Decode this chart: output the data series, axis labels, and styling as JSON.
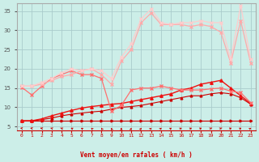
{
  "xlabel": "Vent moyen/en rafales ( km/h )",
  "bg_color": "#cceee8",
  "grid_color": "#aacccc",
  "x_ticks": [
    0,
    1,
    2,
    3,
    4,
    5,
    6,
    7,
    8,
    9,
    10,
    11,
    12,
    13,
    14,
    15,
    16,
    17,
    18,
    19,
    20,
    21,
    22,
    23
  ],
  "y_ticks": [
    5,
    10,
    15,
    20,
    25,
    30,
    35
  ],
  "xlim": [
    -0.5,
    23.5
  ],
  "ylim": [
    4.0,
    37.0
  ],
  "lines": [
    {
      "x": [
        0,
        1,
        2,
        3,
        4,
        5,
        6,
        7,
        8,
        9,
        10,
        11,
        12,
        13,
        14,
        15,
        16,
        17,
        18,
        19,
        20,
        21,
        22,
        23
      ],
      "y": [
        6.5,
        6.5,
        6.5,
        6.5,
        6.5,
        6.5,
        6.5,
        6.5,
        6.5,
        6.5,
        6.5,
        6.5,
        6.5,
        6.5,
        6.5,
        6.5,
        6.5,
        6.5,
        6.5,
        6.5,
        6.5,
        6.5,
        6.5,
        6.5
      ],
      "color": "#cc0000",
      "lw": 0.8,
      "marker": ">",
      "ms": 2.0
    },
    {
      "x": [
        0,
        1,
        2,
        3,
        4,
        5,
        6,
        7,
        8,
        9,
        10,
        11,
        12,
        13,
        14,
        15,
        16,
        17,
        18,
        19,
        20,
        21,
        22,
        23
      ],
      "y": [
        6.5,
        6.5,
        6.8,
        7.2,
        7.8,
        8.2,
        8.5,
        8.8,
        9.0,
        9.5,
        10.0,
        10.2,
        10.5,
        11.0,
        11.5,
        12.0,
        12.5,
        13.0,
        13.0,
        13.5,
        13.8,
        13.5,
        12.5,
        10.8
      ],
      "color": "#cc0000",
      "lw": 0.8,
      "marker": "^",
      "ms": 2.0
    },
    {
      "x": [
        0,
        1,
        2,
        3,
        4,
        5,
        6,
        7,
        8,
        9,
        10,
        11,
        12,
        13,
        14,
        15,
        16,
        17,
        18,
        19,
        20,
        21,
        22,
        23
      ],
      "y": [
        6.5,
        6.5,
        7.0,
        7.8,
        8.5,
        9.2,
        9.8,
        10.2,
        10.5,
        10.8,
        11.0,
        11.5,
        12.0,
        12.5,
        13.0,
        13.5,
        14.5,
        15.0,
        16.0,
        16.5,
        17.0,
        15.0,
        13.0,
        11.0
      ],
      "color": "#ee1111",
      "lw": 1.0,
      "marker": "^",
      "ms": 2.5
    },
    {
      "x": [
        0,
        1,
        2,
        3,
        4,
        5,
        6,
        7,
        8,
        9,
        10,
        11,
        12,
        13,
        14,
        15,
        16,
        17,
        18,
        19,
        20,
        21,
        22,
        23
      ],
      "y": [
        15.2,
        13.2,
        15.5,
        17.5,
        18.5,
        19.5,
        18.5,
        18.5,
        17.5,
        9.0,
        10.5,
        14.5,
        15.0,
        15.0,
        15.5,
        15.0,
        14.5,
        14.5,
        14.5,
        14.8,
        15.0,
        14.2,
        13.8,
        11.2
      ],
      "color": "#ff7070",
      "lw": 0.9,
      "marker": "x",
      "ms": 3.0
    },
    {
      "x": [
        0,
        1,
        2,
        3,
        4,
        5,
        6,
        7,
        8,
        9,
        10,
        11,
        12,
        13,
        14,
        15,
        16,
        17,
        18,
        19,
        20,
        21,
        22,
        23
      ],
      "y": [
        15.5,
        15.5,
        16.0,
        17.0,
        18.0,
        18.5,
        19.5,
        20.0,
        18.5,
        16.0,
        22.0,
        25.0,
        32.0,
        34.5,
        31.5,
        31.5,
        31.5,
        31.0,
        31.5,
        31.0,
        29.5,
        21.5,
        32.5,
        21.5
      ],
      "color": "#ffaaaa",
      "lw": 0.9,
      "marker": "x",
      "ms": 3.0
    },
    {
      "x": [
        0,
        1,
        2,
        3,
        4,
        5,
        6,
        7,
        8,
        9,
        10,
        11,
        12,
        13,
        14,
        15,
        16,
        17,
        18,
        19,
        20,
        21,
        22,
        23
      ],
      "y": [
        15.5,
        15.5,
        16.5,
        17.5,
        19.0,
        20.0,
        19.5,
        20.0,
        19.5,
        17.5,
        23.0,
        26.5,
        33.0,
        35.5,
        32.0,
        31.5,
        32.0,
        32.0,
        32.5,
        32.0,
        32.0,
        22.5,
        36.5,
        22.5
      ],
      "color": "#ffcccc",
      "lw": 0.9,
      "marker": "x",
      "ms": 3.0
    }
  ],
  "arrow_angles": [
    230,
    225,
    220,
    215,
    210,
    205,
    200,
    195,
    190,
    185,
    180,
    175,
    170,
    165,
    160,
    158,
    155,
    153,
    152,
    150,
    150,
    152,
    155,
    160
  ],
  "arrow_color": "#cc0000"
}
